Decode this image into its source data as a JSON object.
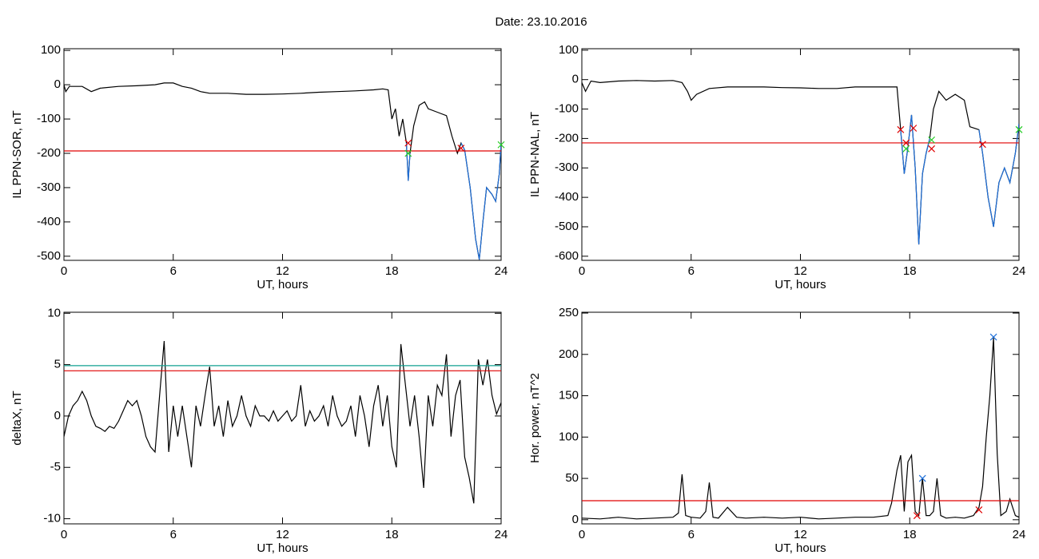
{
  "title": "Date:  23.10.2016",
  "chart_data": [
    {
      "type": "line",
      "ylabel": "IL PPN-SOR, nT",
      "xlabel": "UT, hours",
      "xlim": [
        0,
        24
      ],
      "xticks": [
        0,
        6,
        12,
        18,
        24
      ],
      "ylim": [
        -512,
        105
      ],
      "yticks": [
        100,
        0,
        -100,
        -200,
        -300,
        -400,
        -500
      ],
      "x": [
        0,
        0.1,
        0.3,
        1,
        1.5,
        2,
        3,
        4,
        5,
        5.5,
        6,
        6.5,
        7,
        7.5,
        8,
        9,
        10,
        11,
        12,
        13,
        14,
        15,
        16,
        17,
        17.5,
        17.8,
        18,
        18.2,
        18.4,
        18.6,
        18.8,
        18.9,
        19.0,
        19.2,
        19.5,
        19.8,
        20,
        20.5,
        21,
        21.3,
        21.6,
        21.8,
        22,
        22.3,
        22.6,
        22.8,
        23.0,
        23.2,
        23.5,
        23.7,
        23.9,
        24
      ],
      "series": [
        {
          "color": "#000000",
          "values": [
            0,
            -20,
            -5,
            -5,
            -20,
            -10,
            -5,
            -3,
            0,
            5,
            5,
            -5,
            -10,
            -20,
            -25,
            -25,
            -28,
            -28,
            -27,
            -25,
            -22,
            -20,
            -18,
            -15,
            -12,
            -15,
            -100,
            -70,
            -150,
            -100,
            -170,
            -280,
            -200,
            -120,
            -60,
            -50,
            -70,
            -80,
            -90,
            -150,
            -200,
            -170,
            -190,
            -300,
            -450,
            -510,
            -400,
            -300,
            -320,
            -340,
            -260,
            -170
          ]
        },
        {
          "color": "#1e6fd9",
          "values": [
            null,
            null,
            null,
            null,
            null,
            null,
            null,
            null,
            null,
            null,
            null,
            null,
            null,
            null,
            null,
            null,
            null,
            null,
            null,
            null,
            null,
            null,
            null,
            null,
            null,
            null,
            null,
            null,
            null,
            null,
            -170,
            -280,
            -200,
            null,
            null,
            null,
            null,
            null,
            null,
            null,
            null,
            -170,
            -190,
            -300,
            -450,
            -510,
            -400,
            -300,
            -320,
            -340,
            -260,
            -170
          ]
        }
      ],
      "hlines": [
        {
          "color": "#e00000",
          "value": -193
        }
      ],
      "markers": [
        {
          "color": "#e00000",
          "x": [
            18.9,
            21.8
          ],
          "values": [
            -170,
            -185
          ]
        },
        {
          "color": "#22cc22",
          "x": [
            18.9,
            24
          ],
          "values": [
            -200,
            -175
          ]
        }
      ]
    },
    {
      "type": "line",
      "ylabel": "IL PPN-NAL, nT",
      "xlabel": "UT, hours",
      "xlim": [
        0,
        24
      ],
      "xticks": [
        0,
        6,
        12,
        18,
        24
      ],
      "ylim": [
        -614,
        105
      ],
      "yticks": [
        100,
        0,
        -100,
        -200,
        -300,
        -400,
        -500,
        -600
      ],
      "x": [
        0,
        0.2,
        0.5,
        1,
        2,
        3,
        4,
        5,
        5.5,
        5.8,
        6,
        6.3,
        7,
        8,
        9,
        10,
        11,
        12,
        13,
        14,
        15,
        16,
        17,
        17.3,
        17.5,
        17.7,
        17.9,
        18.1,
        18.3,
        18.5,
        18.7,
        18.9,
        19.1,
        19.3,
        19.6,
        20,
        20.5,
        21,
        21.3,
        21.8,
        22,
        22.3,
        22.6,
        22.9,
        23.2,
        23.5,
        23.8,
        24
      ],
      "series": [
        {
          "color": "#000000",
          "values": [
            -10,
            -40,
            -5,
            -10,
            -5,
            -3,
            -5,
            -3,
            -10,
            -40,
            -70,
            -50,
            -30,
            -25,
            -25,
            -25,
            -27,
            -28,
            -30,
            -30,
            -25,
            -25,
            -25,
            -25,
            -170,
            -320,
            -230,
            -120,
            -300,
            -560,
            -320,
            -250,
            -200,
            -100,
            -40,
            -70,
            -50,
            -70,
            -160,
            -170,
            -250,
            -400,
            -500,
            -350,
            -300,
            -350,
            -250,
            -150
          ]
        },
        {
          "color": "#1e6fd9",
          "values": [
            null,
            null,
            null,
            null,
            null,
            null,
            null,
            null,
            null,
            null,
            null,
            null,
            null,
            null,
            null,
            null,
            null,
            null,
            null,
            null,
            null,
            null,
            null,
            null,
            -170,
            -320,
            -230,
            -120,
            -300,
            -560,
            -320,
            -250,
            -200,
            null,
            null,
            null,
            null,
            null,
            null,
            -170,
            -250,
            -400,
            -500,
            -350,
            -300,
            -350,
            -250,
            -150
          ]
        }
      ],
      "hlines": [
        {
          "color": "#e00000",
          "value": -215
        }
      ],
      "markers": [
        {
          "color": "#e00000",
          "x": [
            17.5,
            17.8,
            18.2,
            19.2,
            22
          ],
          "values": [
            -170,
            -215,
            -165,
            -235,
            -220
          ]
        },
        {
          "color": "#22cc22",
          "x": [
            17.8,
            19.2,
            24
          ],
          "values": [
            -235,
            -205,
            -170
          ]
        }
      ]
    },
    {
      "type": "line",
      "ylabel": "deltaX, nT",
      "xlabel": "UT, hours",
      "xlim": [
        0,
        24
      ],
      "xticks": [
        0,
        6,
        12,
        18,
        24
      ],
      "ylim": [
        -10.5,
        10.1
      ],
      "yticks": [
        10,
        5,
        0,
        -5,
        -10
      ],
      "x": [
        0,
        0.25,
        0.5,
        0.75,
        1,
        1.25,
        1.5,
        1.75,
        2,
        2.25,
        2.5,
        2.75,
        3,
        3.25,
        3.5,
        3.75,
        4,
        4.25,
        4.5,
        4.75,
        5,
        5.25,
        5.5,
        5.75,
        6,
        6.25,
        6.5,
        6.75,
        7,
        7.25,
        7.5,
        7.75,
        8,
        8.25,
        8.5,
        8.75,
        9,
        9.25,
        9.5,
        9.75,
        10,
        10.25,
        10.5,
        10.75,
        11,
        11.25,
        11.5,
        11.75,
        12,
        12.25,
        12.5,
        12.75,
        13,
        13.25,
        13.5,
        13.75,
        14,
        14.25,
        14.5,
        14.75,
        15,
        15.25,
        15.5,
        15.75,
        16,
        16.25,
        16.5,
        16.75,
        17,
        17.25,
        17.5,
        17.75,
        18,
        18.25,
        18.5,
        18.75,
        19,
        19.25,
        19.5,
        19.75,
        20,
        20.25,
        20.5,
        20.75,
        21,
        21.25,
        21.5,
        21.75,
        22,
        22.25,
        22.5,
        22.75,
        23,
        23.25,
        23.5,
        23.75,
        24
      ],
      "series": [
        {
          "color": "#000000",
          "values": [
            -2,
            0,
            1,
            1.5,
            2.4,
            1.5,
            0,
            -1,
            -1.2,
            -1.5,
            -1,
            -1.2,
            -0.5,
            0.5,
            1.5,
            1,
            1.5,
            0,
            -2,
            -3,
            -3.5,
            2,
            7.3,
            -3.5,
            1,
            -2,
            1,
            -2,
            -5,
            1,
            -1,
            2,
            4.8,
            -1,
            1,
            -2,
            1.5,
            -1,
            0,
            2,
            0,
            -1,
            1,
            0,
            0,
            -0.5,
            0.5,
            -0.5,
            0,
            0.5,
            -0.5,
            0,
            3,
            -1,
            0.5,
            -0.5,
            0,
            1,
            -1,
            2,
            0,
            -1,
            -0.5,
            1,
            -2,
            2,
            0,
            -3,
            1,
            3,
            -1,
            2,
            -3,
            -5,
            7,
            3,
            -1,
            2,
            -2,
            -7,
            2,
            -1,
            3,
            2,
            6,
            -2,
            2,
            3.5,
            -4,
            -6,
            -8.5,
            5.5,
            3,
            5.5,
            2,
            0.2,
            1.3
          ]
        }
      ],
      "hlines": [
        {
          "color": "#e00000",
          "value": 4.4
        },
        {
          "color": "#10a090",
          "value": 4.9
        }
      ],
      "markers": []
    },
    {
      "type": "line",
      "ylabel": "Hor. power, nT^2",
      "xlabel": "UT, hours",
      "xlim": [
        0,
        24
      ],
      "xticks": [
        0,
        6,
        12,
        18,
        24
      ],
      "ylim": [
        -5,
        251
      ],
      "yticks": [
        0,
        50,
        100,
        150,
        200,
        250
      ],
      "x": [
        0,
        1,
        2,
        3,
        4,
        5,
        5.3,
        5.5,
        5.7,
        6,
        6.5,
        6.8,
        7,
        7.2,
        7.5,
        8,
        8.5,
        9,
        10,
        11,
        12,
        13,
        14,
        15,
        16,
        16.8,
        17,
        17.3,
        17.5,
        17.7,
        17.9,
        18.1,
        18.3,
        18.5,
        18.7,
        18.9,
        19.1,
        19.3,
        19.5,
        19.7,
        20,
        20.5,
        21,
        21.5,
        21.8,
        22,
        22.2,
        22.4,
        22.6,
        22.8,
        23,
        23.3,
        23.5,
        23.8,
        24
      ],
      "series": [
        {
          "color": "#000000",
          "values": [
            2,
            1,
            3,
            1,
            2,
            3,
            8,
            55,
            5,
            3,
            2,
            10,
            45,
            3,
            2,
            15,
            3,
            2,
            3,
            2,
            3,
            1,
            2,
            3,
            3,
            5,
            20,
            60,
            78,
            10,
            70,
            78,
            10,
            5,
            50,
            5,
            5,
            10,
            50,
            5,
            2,
            3,
            2,
            5,
            15,
            40,
            100,
            150,
            220,
            80,
            5,
            10,
            25,
            5,
            3
          ]
        }
      ],
      "hlines": [
        {
          "color": "#e00000",
          "value": 23
        }
      ],
      "markers": [
        {
          "color": "#1e6fd9",
          "x": [
            18.7,
            22.6
          ],
          "values": [
            50,
            221
          ]
        },
        {
          "color": "#e00000",
          "x": [
            18.4,
            21.8
          ],
          "values": [
            5,
            12
          ]
        }
      ]
    }
  ]
}
